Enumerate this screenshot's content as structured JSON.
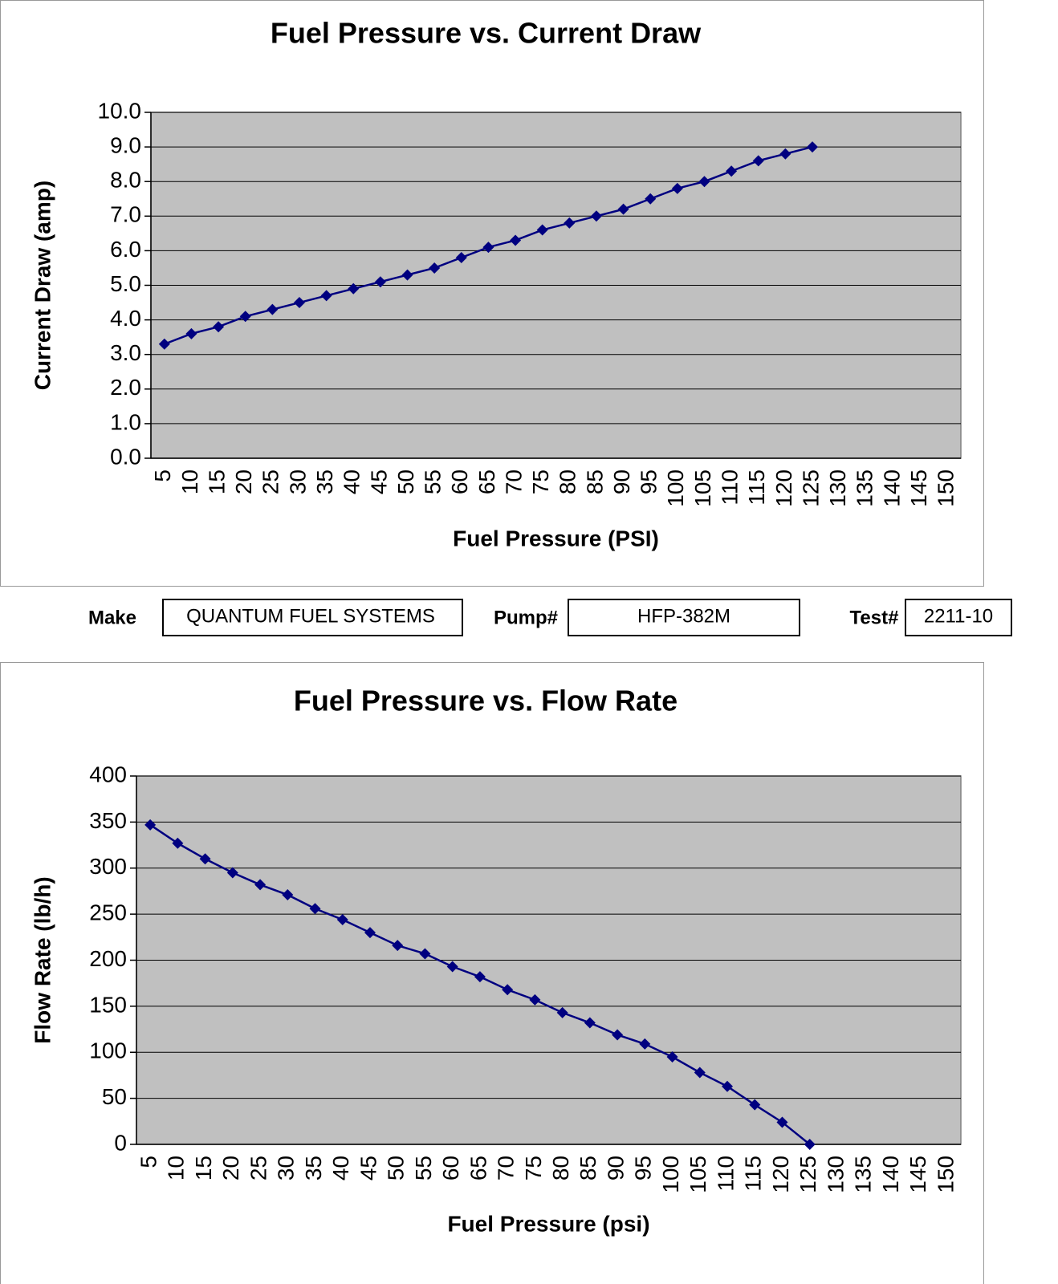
{
  "chart_data": [
    {
      "type": "line",
      "title": "Fuel Pressure vs. Current Draw",
      "x_label": "Fuel Pressure (PSI)",
      "y_label": "Current Draw (amp)",
      "categories": [
        "5",
        "10",
        "15",
        "20",
        "25",
        "30",
        "35",
        "40",
        "45",
        "50",
        "55",
        "60",
        "65",
        "70",
        "75",
        "80",
        "85",
        "90",
        "95",
        "100",
        "105",
        "110",
        "115",
        "120",
        "125",
        "130",
        "135",
        "140",
        "145",
        "150"
      ],
      "values": [
        3.3,
        3.6,
        3.8,
        4.1,
        4.3,
        4.5,
        4.7,
        4.9,
        5.1,
        5.3,
        5.5,
        5.8,
        6.1,
        6.3,
        6.6,
        6.8,
        7.0,
        7.2,
        7.5,
        7.8,
        8.0,
        8.3,
        8.6,
        8.8,
        9.0,
        null,
        null,
        null,
        null,
        null
      ],
      "color": "#000080",
      "ylim": [
        0,
        10
      ],
      "yticks": [
        {
          "value": 0,
          "label": "0.0"
        },
        {
          "value": 1,
          "label": "1.0"
        },
        {
          "value": 2,
          "label": "2.0"
        },
        {
          "value": 3,
          "label": "3.0"
        },
        {
          "value": 4,
          "label": "4.0"
        },
        {
          "value": 5,
          "label": "5.0"
        },
        {
          "value": 6,
          "label": "6.0"
        },
        {
          "value": 7,
          "label": "7.0"
        },
        {
          "value": 8,
          "label": "8.0"
        },
        {
          "value": 9,
          "label": "9.0"
        },
        {
          "value": 10,
          "label": "10.0"
        }
      ],
      "grid": true
    },
    {
      "type": "line",
      "title": "Fuel Pressure vs. Flow Rate",
      "x_label": "Fuel Pressure (psi)",
      "y_label": "Flow Rate (lb/h)",
      "categories": [
        "5",
        "10",
        "15",
        "20",
        "25",
        "30",
        "35",
        "40",
        "45",
        "50",
        "55",
        "60",
        "65",
        "70",
        "75",
        "80",
        "85",
        "90",
        "95",
        "100",
        "105",
        "110",
        "115",
        "120",
        "125",
        "130",
        "135",
        "140",
        "145",
        "150"
      ],
      "values": [
        347,
        327,
        310,
        295,
        282,
        271,
        256,
        244,
        230,
        216,
        207,
        193,
        182,
        168,
        157,
        143,
        132,
        119,
        109,
        95,
        78,
        63,
        43,
        24,
        0,
        null,
        null,
        null,
        null,
        null
      ],
      "color": "#000080",
      "ylim": [
        0,
        400
      ],
      "yticks": [
        0,
        50,
        100,
        150,
        200,
        250,
        300,
        350,
        400
      ],
      "grid": true
    }
  ],
  "form": {
    "make_label": "Make",
    "make": "QUANTUM FUEL SYSTEMS",
    "pump_label": "Pump#",
    "pump": "HFP-382M",
    "test_label": "Test#",
    "test": "2211-10"
  }
}
